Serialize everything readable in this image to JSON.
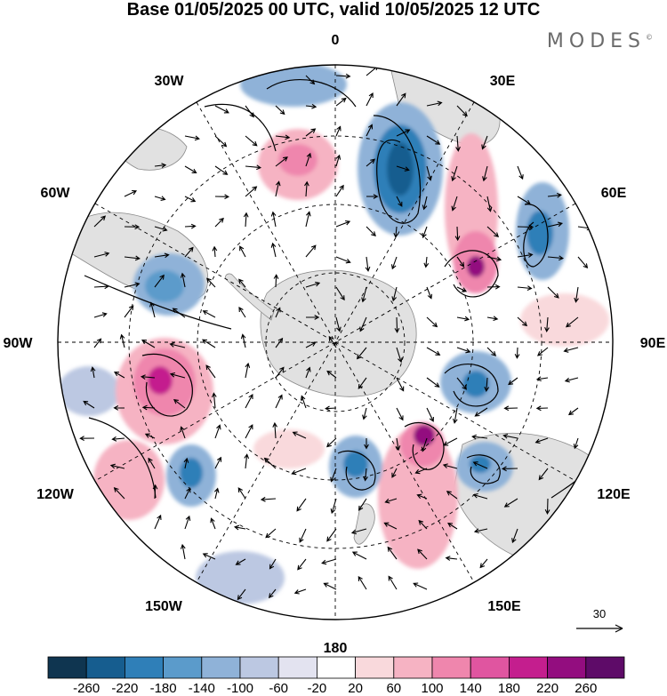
{
  "title": "Base 01/05/2025 00 UTC, valid 10/05/2025 12 UTC",
  "brand": "MODES",
  "brand_mark": "©",
  "projection": "south-polar-stereographic",
  "longitude_labels": {
    "top": "0",
    "top_right": "30E",
    "right_upper": "60E",
    "right": "90E",
    "right_lower": "120E",
    "bottom_right": "150E",
    "bottom": "180",
    "bottom_left": "150W",
    "left_lower": "120W",
    "left": "90W",
    "left_upper": "60W",
    "top_left": "30W"
  },
  "wind_reference_vector": {
    "value": "30"
  },
  "colorbar": {
    "ticks": [
      "-260",
      "-220",
      "-180",
      "-140",
      "-100",
      "-60",
      "-20",
      "20",
      "60",
      "100",
      "140",
      "180",
      "220",
      "260"
    ],
    "colors": [
      "#0f3550",
      "#165d8f",
      "#2f7fb8",
      "#5b9bcb",
      "#8fb2d8",
      "#bcc8e2",
      "#e3e3f0",
      "#ffffff",
      "#f9d9dc",
      "#f6b3c3",
      "#ef86ad",
      "#e055a0",
      "#c41e8e",
      "#930d7f",
      "#5e0b68"
    ]
  },
  "colors": {
    "land": "#dcdcdc",
    "coast": "#8a8a8a",
    "arrow": "#000000",
    "grid": "#000000"
  }
}
